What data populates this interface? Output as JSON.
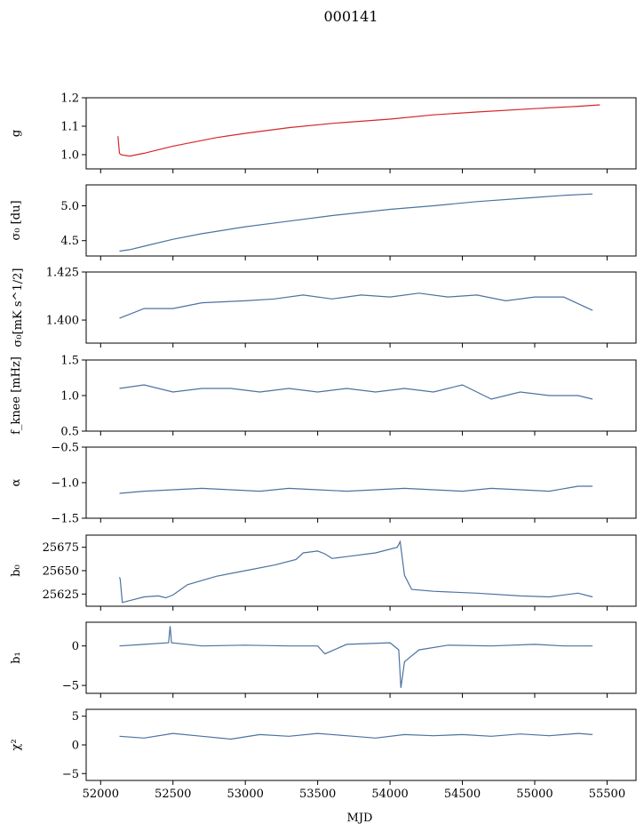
{
  "chart_data": {
    "type": "line",
    "title": "000141",
    "xlabel": "MJD",
    "xlim": [
      51900,
      55700
    ],
    "xticks": [
      52000,
      52500,
      53000,
      53500,
      54000,
      54500,
      55000,
      55500
    ],
    "xtick_labels": [
      "52000",
      "52500",
      "53000",
      "53500",
      "54000",
      "54500",
      "55000",
      "55500"
    ],
    "panels": [
      {
        "id": "g",
        "ylabel": "g",
        "ylim": [
          0.95,
          1.2
        ],
        "yticks": [
          1.0,
          1.1,
          1.2
        ],
        "ytick_labels": [
          "1.0",
          "1.1",
          "1.2"
        ],
        "series": [
          {
            "color": "#d62728",
            "x": [
              52120,
              52130,
              52140,
              52160,
              52200,
              52300,
              52500,
              52800,
              53000,
              53300,
              53600,
              54000,
              54300,
              54600,
              55000,
              55300,
              55450
            ],
            "y": [
              1.065,
              1.005,
              1.0,
              0.998,
              0.995,
              1.005,
              1.03,
              1.06,
              1.075,
              1.095,
              1.11,
              1.125,
              1.14,
              1.15,
              1.162,
              1.17,
              1.175
            ]
          }
        ]
      },
      {
        "id": "sigma0",
        "ylabel": "σ₀ [du]",
        "ylim": [
          4.28,
          5.3
        ],
        "yticks": [
          4.5,
          5.0
        ],
        "ytick_labels": [
          "4.5",
          "5.0"
        ],
        "series": [
          {
            "color": "#4c72a0",
            "x": [
              52130,
              52200,
              52300,
              52500,
              52700,
              53000,
              53300,
              53600,
              54000,
              54300,
              54600,
              55000,
              55200,
              55400
            ],
            "y": [
              4.35,
              4.37,
              4.42,
              4.52,
              4.6,
              4.7,
              4.78,
              4.86,
              4.95,
              5.0,
              5.06,
              5.12,
              5.15,
              5.17
            ]
          }
        ]
      },
      {
        "id": "sigma0_mks",
        "ylabel": "σ₀[mK s^1/2]",
        "ylim": [
          1.388,
          1.425
        ],
        "yticks": [
          1.4,
          1.425
        ],
        "ytick_labels": [
          "1.400",
          "1.425"
        ],
        "series": [
          {
            "color": "#4c72a0",
            "x": [
              52130,
              52200,
              52300,
              52500,
              52700,
              53000,
              53200,
              53400,
              53600,
              53800,
              54000,
              54200,
              54400,
              54600,
              54800,
              55000,
              55200,
              55400
            ],
            "y": [
              1.401,
              1.403,
              1.406,
              1.406,
              1.409,
              1.41,
              1.411,
              1.413,
              1.411,
              1.413,
              1.412,
              1.414,
              1.412,
              1.413,
              1.41,
              1.412,
              1.412,
              1.405
            ]
          }
        ]
      },
      {
        "id": "fknee",
        "ylabel": "f_knee [mHz]",
        "ylim": [
          0.5,
          1.5
        ],
        "yticks": [
          0.5,
          1.0,
          1.5
        ],
        "ytick_labels": [
          "0.5",
          "1.0",
          "1.5"
        ],
        "series": [
          {
            "color": "#4c72a0",
            "x": [
              52130,
              52300,
              52500,
              52700,
              52900,
              53100,
              53300,
              53500,
              53700,
              53900,
              54100,
              54300,
              54500,
              54700,
              54900,
              55100,
              55300,
              55400
            ],
            "y": [
              1.1,
              1.15,
              1.05,
              1.1,
              1.1,
              1.05,
              1.1,
              1.05,
              1.1,
              1.05,
              1.1,
              1.05,
              1.15,
              0.95,
              1.05,
              1.0,
              1.0,
              0.95
            ]
          }
        ]
      },
      {
        "id": "alpha",
        "ylabel": "α",
        "ylim": [
          -1.5,
          -0.5
        ],
        "yticks": [
          -1.5,
          -1.0,
          -0.5
        ],
        "ytick_labels": [
          "−1.5",
          "−1.0",
          "−0.5"
        ],
        "series": [
          {
            "color": "#4c72a0",
            "x": [
              52130,
              52300,
              52500,
              52700,
              52900,
              53100,
              53300,
              53500,
              53700,
              53900,
              54100,
              54300,
              54500,
              54700,
              54900,
              55100,
              55300,
              55400
            ],
            "y": [
              -1.15,
              -1.12,
              -1.1,
              -1.08,
              -1.1,
              -1.12,
              -1.08,
              -1.1,
              -1.12,
              -1.1,
              -1.08,
              -1.1,
              -1.12,
              -1.08,
              -1.1,
              -1.12,
              -1.05,
              -1.05
            ]
          }
        ]
      },
      {
        "id": "b0",
        "ylabel": "b₀",
        "ylim": [
          25612,
          25688
        ],
        "yticks": [
          25625,
          25650,
          25675
        ],
        "ytick_labels": [
          "25625",
          "25650",
          "25675"
        ],
        "series": [
          {
            "color": "#4c72a0",
            "x": [
              52130,
              52135,
              52150,
              52200,
              52300,
              52400,
              52450,
              52500,
              52600,
              52800,
              53000,
              53200,
              53350,
              53400,
              53500,
              53550,
              53600,
              53700,
              53900,
              54050,
              54070,
              54100,
              54150,
              54300,
              54600,
              54900,
              55100,
              55250,
              55300,
              55400
            ],
            "y": [
              25643,
              25641,
              25616,
              25618,
              25622,
              25623,
              25621,
              25624,
              25635,
              25644,
              25650,
              25656,
              25662,
              25669,
              25671,
              25668,
              25663,
              25665,
              25669,
              25675,
              25681,
              25645,
              25630,
              25628,
              25626,
              25623,
              25622,
              25625,
              25626,
              25622
            ]
          }
        ]
      },
      {
        "id": "b1",
        "ylabel": "b₁",
        "ylim": [
          -6.0,
          3.0
        ],
        "yticks": [
          -5,
          0
        ],
        "ytick_labels": [
          "−5",
          "0"
        ],
        "series": [
          {
            "color": "#4c72a0",
            "x": [
              52130,
              52300,
              52470,
              52480,
              52490,
              52700,
              53000,
              53300,
              53500,
              53550,
              53700,
              54000,
              54060,
              54075,
              54100,
              54200,
              54400,
              54700,
              55000,
              55200,
              55400
            ],
            "y": [
              0.0,
              0.2,
              0.4,
              2.5,
              0.4,
              0.0,
              0.1,
              0.0,
              0.0,
              -1.0,
              0.2,
              0.4,
              -0.5,
              -5.3,
              -2.0,
              -0.5,
              0.1,
              0.0,
              0.2,
              0.0,
              0.0
            ]
          }
        ]
      },
      {
        "id": "chi2",
        "ylabel": "χ²",
        "ylim": [
          -6.2,
          6.2
        ],
        "yticks": [
          -5,
          0,
          5
        ],
        "ytick_labels": [
          "−5",
          "0",
          "5"
        ],
        "series": [
          {
            "color": "#4c72a0",
            "x": [
              52130,
              52300,
              52500,
              52700,
              52900,
              53100,
              53300,
              53500,
              53700,
              53900,
              54100,
              54300,
              54500,
              54700,
              54900,
              55100,
              55300,
              55400
            ],
            "y": [
              1.5,
              1.2,
              2.0,
              1.5,
              1.0,
              1.8,
              1.5,
              2.0,
              1.6,
              1.2,
              1.8,
              1.6,
              1.8,
              1.5,
              1.9,
              1.6,
              2.0,
              1.8
            ]
          }
        ]
      }
    ]
  }
}
